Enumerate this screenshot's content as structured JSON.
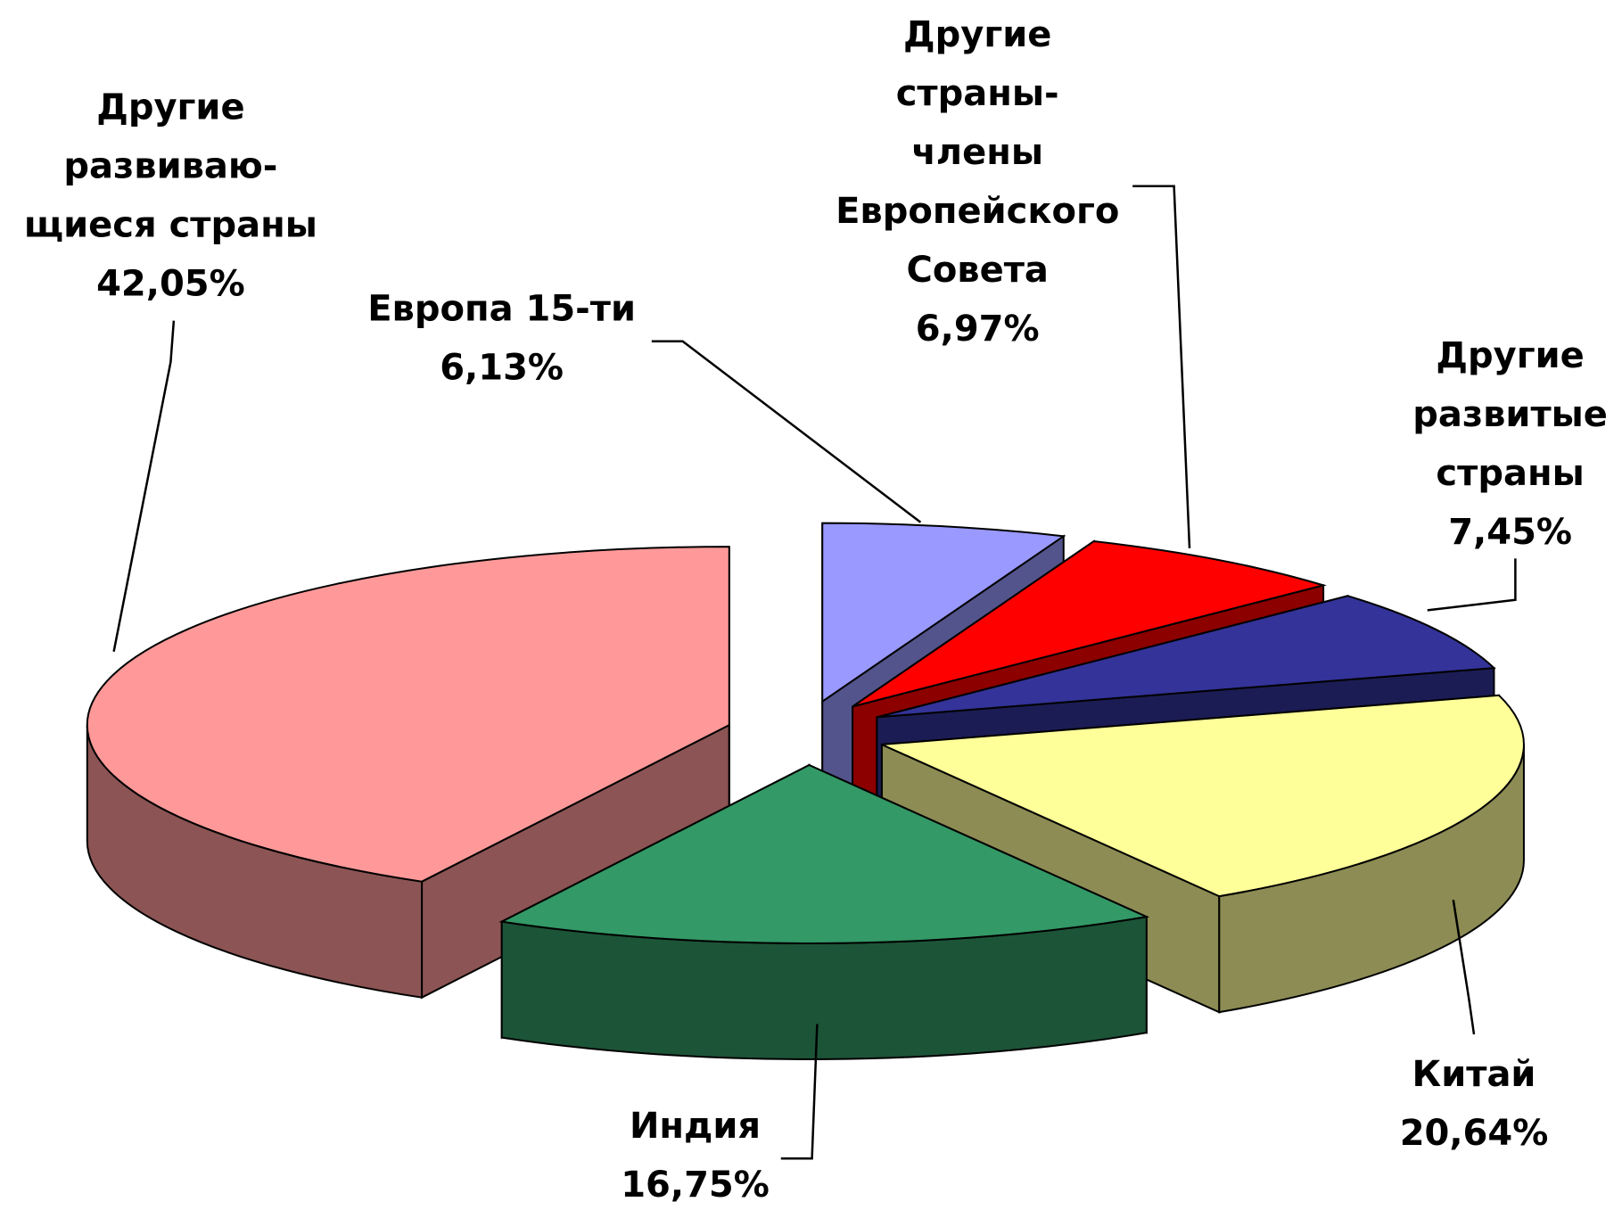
{
  "chart_data": {
    "type": "pie3d",
    "categories": [
      "Европа 15-ти",
      "Другие\nстраны-\nчлены\nЕвропейского\nСовета",
      "Другие\nразвитые\nстраны",
      "Китай",
      "Индия",
      "Другие\nразвиваю-\nщиеся страны"
    ],
    "values": [
      6.13,
      6.97,
      7.45,
      20.64,
      16.75,
      42.05
    ],
    "value_labels": [
      "6,13%",
      "6,97%",
      "7,45%",
      "20,64%",
      "16,75%",
      "42,05%"
    ],
    "colors": [
      "#9999ff",
      "#ff0000",
      "#333399",
      "#ffff99",
      "#339966",
      "#ff9999"
    ]
  }
}
